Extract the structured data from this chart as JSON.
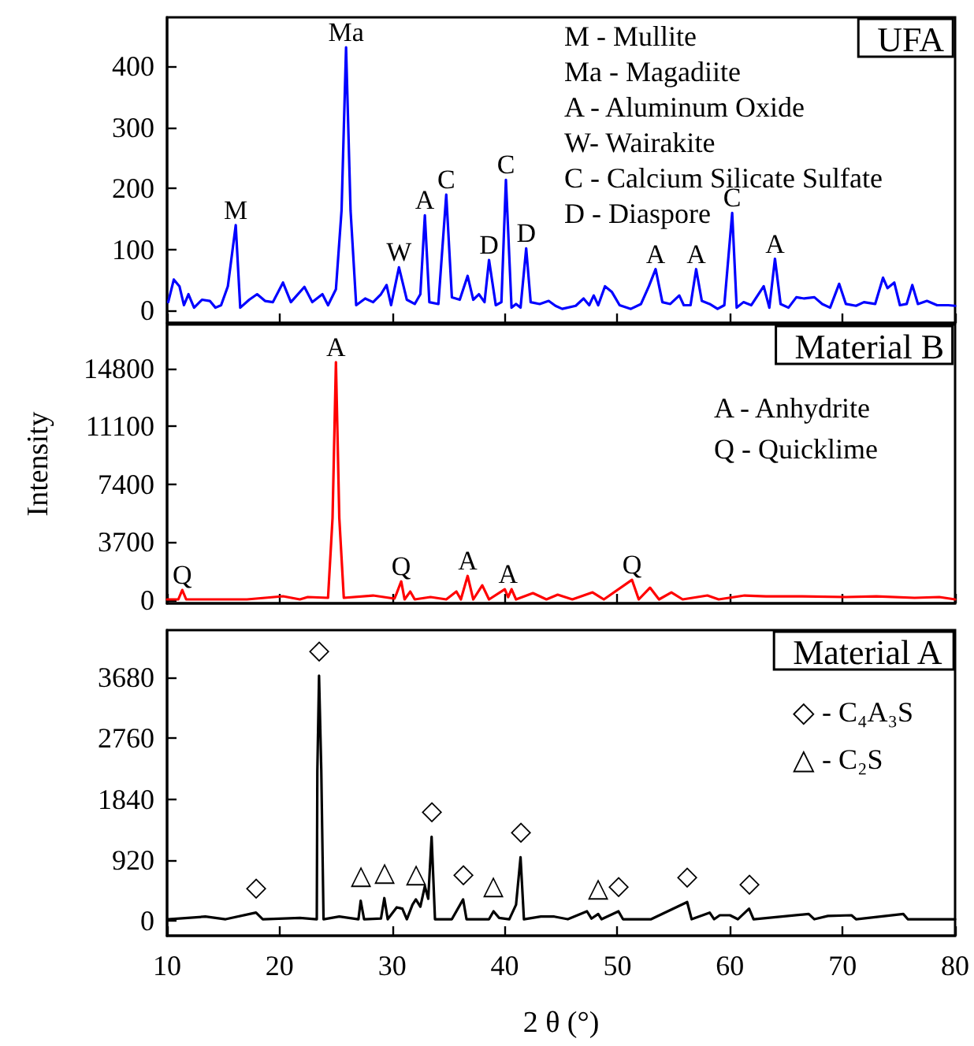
{
  "chart_data": [
    {
      "type": "line",
      "title": "UFA",
      "tick_labels": "y",
      "xlim": [
        10,
        80
      ],
      "xticks": [
        10,
        20,
        30,
        40,
        50,
        60,
        70,
        80
      ],
      "ylim": [
        -20,
        480
      ],
      "yticks": [
        0,
        100,
        200,
        300,
        400
      ],
      "marker": "none",
      "line_style": "solid",
      "x": [
        10.1,
        10.6,
        11.1,
        11.5,
        11.9,
        12.4,
        13.1,
        13.8,
        14.3,
        14.8,
        15.4,
        16.1,
        16.5,
        17.3,
        18.0,
        18.7,
        19.4,
        20.3,
        21.0,
        22.2,
        22.9,
        23.8,
        24.3,
        25.0,
        25.5,
        25.9,
        26.3,
        26.8,
        27.6,
        28.3,
        29.0,
        29.5,
        29.9,
        30.6,
        31.3,
        32.0,
        32.5,
        32.9,
        33.3,
        34.1,
        34.8,
        35.3,
        36.0,
        36.7,
        37.2,
        37.7,
        38.2,
        38.6,
        39.2,
        39.7,
        40.1,
        40.6,
        41.0,
        41.4,
        41.9,
        42.3,
        43.1,
        43.9,
        44.5,
        45.1,
        46.3,
        47.0,
        47.5,
        47.9,
        48.3,
        48.9,
        49.5,
        50.2,
        51.2,
        52.1,
        52.8,
        53.4,
        54.0,
        54.7,
        55.5,
        55.9,
        56.5,
        57.0,
        57.5,
        58.2,
        58.9,
        59.5,
        60.2,
        60.6,
        61.2,
        61.9,
        63.0,
        63.5,
        64.0,
        64.5,
        65.2,
        65.9,
        66.6,
        67.5,
        68.2,
        68.9,
        69.7,
        70.3,
        71.2,
        71.9,
        72.9,
        73.6,
        74.0,
        74.6,
        75.1,
        75.7,
        76.2,
        76.7,
        77.5,
        78.4,
        79.4,
        80.0
      ],
      "series": [
        {
          "color": "#0000ff",
          "values": [
            14,
            51,
            40,
            9,
            27,
            5,
            18,
            16,
            5,
            9,
            40,
            140,
            5,
            18,
            27,
            16,
            14,
            46,
            14,
            39,
            14,
            27,
            9,
            35,
            164,
            431,
            164,
            9,
            20,
            14,
            27,
            42,
            9,
            71,
            18,
            11,
            27,
            156,
            14,
            11,
            190,
            22,
            18,
            57,
            18,
            27,
            14,
            83,
            9,
            14,
            214,
            5,
            11,
            5,
            102,
            14,
            11,
            16,
            8,
            3,
            8,
            20,
            9,
            25,
            9,
            40,
            31,
            9,
            3,
            11,
            40,
            68,
            14,
            11,
            25,
            9,
            9,
            68,
            16,
            11,
            3,
            9,
            160,
            5,
            14,
            9,
            40,
            5,
            85,
            11,
            5,
            22,
            20,
            22,
            11,
            5,
            44,
            11,
            8,
            14,
            11,
            54,
            37,
            46,
            9,
            11,
            42,
            11,
            16,
            9,
            9,
            8
          ]
        }
      ],
      "annotations": [
        {
          "text": "M",
          "x": 16.1,
          "y": 140
        },
        {
          "text": "Ma",
          "x": 25.9,
          "y": 431
        },
        {
          "text": "W",
          "x": 30.6,
          "y": 71
        },
        {
          "text": "A",
          "x": 32.9,
          "y": 156
        },
        {
          "text": "C",
          "x": 34.8,
          "y": 190
        },
        {
          "text": "D",
          "x": 38.6,
          "y": 83
        },
        {
          "text": "C",
          "x": 40.1,
          "y": 214
        },
        {
          "text": "D",
          "x": 41.9,
          "y": 102
        },
        {
          "text": "A",
          "x": 53.4,
          "y": 68
        },
        {
          "text": "A",
          "x": 57.0,
          "y": 68
        },
        {
          "text": "C",
          "x": 60.2,
          "y": 160
        },
        {
          "text": "A",
          "x": 64.0,
          "y": 85
        },
        "M - Mullite",
        "Ma - Magadiite",
        "A - Aluminum Oxide",
        "W- Wairakite",
        "C - Calcium Silicate Sulfate",
        "D - Diaspore"
      ]
    },
    {
      "type": "line",
      "title": "Material B",
      "ylabel": "Intensity",
      "tick_labels": "y",
      "xlim": [
        10,
        80
      ],
      "xticks": [
        10,
        20,
        30,
        40,
        50,
        60,
        70,
        80
      ],
      "ylim": [
        -200,
        17600
      ],
      "yticks": [
        0,
        3700,
        7400,
        11100,
        14800
      ],
      "marker": "none",
      "line_style": "solid",
      "x": [
        10.0,
        11.0,
        11.35,
        11.7,
        17.1,
        20.3,
        21.8,
        22.5,
        24.3,
        24.7,
        25.0,
        25.3,
        25.7,
        28.3,
        30.2,
        30.4,
        30.8,
        31.1,
        31.6,
        32.0,
        33.4,
        34.8,
        35.7,
        36.1,
        36.7,
        37.2,
        38.0,
        38.6,
        40.0,
        40.3,
        40.6,
        41.0,
        42.5,
        43.7,
        44.7,
        46.0,
        47.8,
        48.8,
        51.3,
        51.9,
        52.9,
        53.7,
        54.8,
        55.8,
        58.0,
        59.0,
        61.3,
        63.2,
        66.4,
        70.3,
        73.0,
        76.4,
        78.6,
        80.0
      ],
      "series": [
        {
          "color": "#ff0000",
          "values": [
            50,
            50,
            650,
            50,
            50,
            250,
            50,
            200,
            150,
            5250,
            15200,
            5250,
            150,
            300,
            100,
            450,
            1200,
            50,
            550,
            50,
            200,
            50,
            550,
            50,
            1550,
            50,
            950,
            50,
            700,
            200,
            700,
            50,
            450,
            50,
            350,
            50,
            500,
            50,
            1300,
            50,
            800,
            50,
            500,
            50,
            300,
            50,
            300,
            250,
            250,
            200,
            250,
            150,
            200,
            50
          ]
        }
      ],
      "annotations": [
        {
          "text": "Q",
          "x": 11.35,
          "y": 650
        },
        {
          "text": "A",
          "x": 25.0,
          "y": 15200
        },
        {
          "text": "Q",
          "x": 30.8,
          "y": 1200
        },
        {
          "text": "A",
          "x": 36.7,
          "y": 1550
        },
        {
          "text": "A",
          "x": 40.3,
          "y": 700
        },
        {
          "text": "Q",
          "x": 51.3,
          "y": 1300
        },
        "A - Anhydrite",
        "Q - Quicklime"
      ]
    },
    {
      "type": "line",
      "title": "Material A",
      "xlabel": "2 θ (°)",
      "xlim": [
        10,
        80
      ],
      "xticks": [
        10,
        20,
        30,
        40,
        50,
        60,
        70,
        80
      ],
      "ylim": [
        -230,
        4400
      ],
      "yticks": [
        0,
        920,
        1840,
        2760,
        3680
      ],
      "marker": "none",
      "line_style": "solid",
      "x": [
        10.1,
        13.4,
        15.2,
        17.9,
        18.5,
        21.8,
        23.3,
        23.35,
        23.5,
        23.7,
        23.9,
        25.3,
        27.0,
        27.2,
        27.5,
        29.0,
        29.3,
        29.6,
        30.4,
        30.9,
        31.3,
        31.8,
        32.1,
        32.5,
        32.9,
        33.2,
        33.5,
        33.8,
        35.3,
        36.3,
        36.6,
        38.6,
        39.0,
        39.5,
        40.4,
        41.0,
        41.4,
        41.7,
        43.2,
        44.4,
        45.6,
        47.3,
        47.7,
        48.3,
        48.6,
        50.1,
        50.5,
        53.0,
        56.2,
        56.6,
        58.2,
        58.6,
        59.1,
        60.0,
        60.7,
        61.7,
        62.1,
        67.0,
        67.5,
        68.7,
        70.8,
        71.2,
        75.4,
        75.8,
        80.0
      ],
      "series": [
        {
          "color": "#000000",
          "values": [
            20,
            60,
            20,
            120,
            20,
            40,
            20,
            2270,
            3710,
            2270,
            20,
            60,
            20,
            300,
            20,
            30,
            340,
            20,
            200,
            180,
            20,
            240,
            320,
            210,
            520,
            330,
            1270,
            20,
            20,
            320,
            20,
            20,
            140,
            40,
            20,
            240,
            960,
            20,
            60,
            60,
            20,
            140,
            30,
            100,
            20,
            140,
            20,
            20,
            280,
            20,
            120,
            20,
            80,
            80,
            20,
            180,
            20,
            100,
            20,
            70,
            80,
            20,
            100,
            20,
            20
          ]
        }
      ],
      "annotations": [
        {
          "text": "◇",
          "x": 17.9,
          "y": 120
        },
        {
          "text": "◇",
          "x": 23.5,
          "y": 3710
        },
        {
          "text": "△",
          "x": 27.2,
          "y": 300
        },
        {
          "text": "△",
          "x": 29.3,
          "y": 340
        },
        {
          "text": "△",
          "x": 32.1,
          "y": 320
        },
        {
          "text": "◇",
          "x": 33.5,
          "y": 1270
        },
        {
          "text": "◇",
          "x": 36.3,
          "y": 320
        },
        {
          "text": "△",
          "x": 39.0,
          "y": 140
        },
        {
          "text": "◇",
          "x": 41.4,
          "y": 960
        },
        {
          "text": "△",
          "x": 48.3,
          "y": 100
        },
        {
          "text": "◇",
          "x": 50.1,
          "y": 140
        },
        {
          "text": "◇",
          "x": 56.2,
          "y": 280
        },
        {
          "text": "◇",
          "x": 61.7,
          "y": 180
        },
        "◇ - C₄A₃S",
        "△ - C₂S"
      ]
    }
  ]
}
